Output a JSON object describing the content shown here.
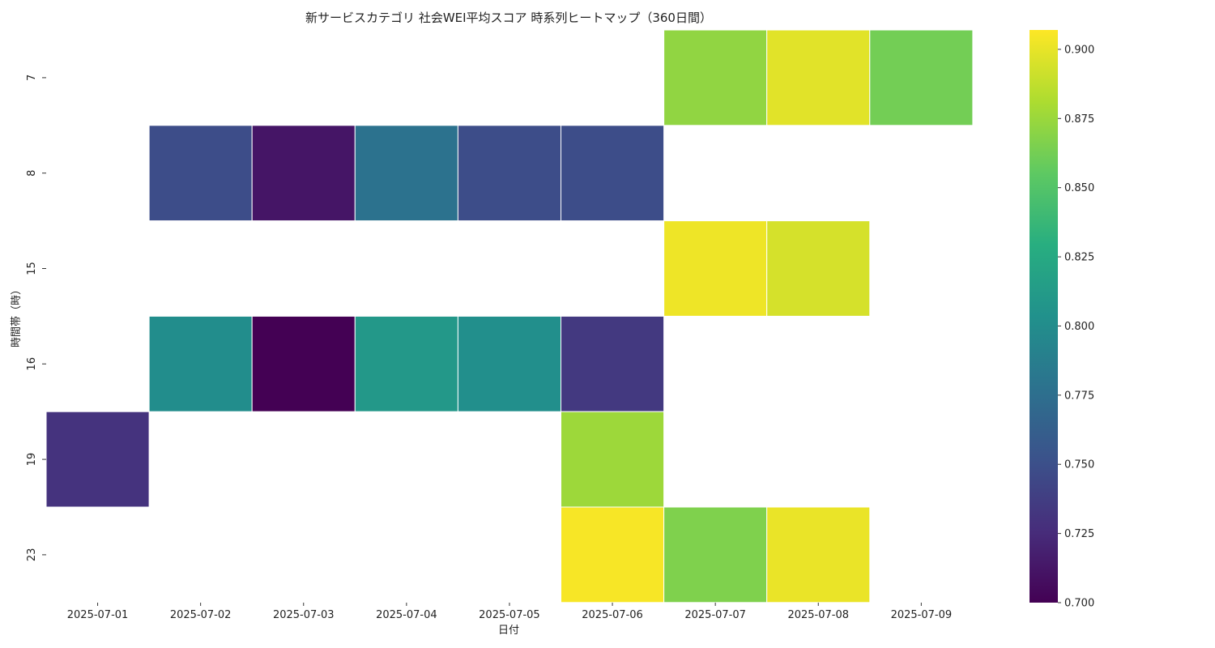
{
  "chart_data": {
    "type": "heatmap",
    "title": "新サービスカテゴリ 社会WEI平均スコア 時系列ヒートマップ（360日間）",
    "xlabel": "日付",
    "ylabel": "時間帯（時）",
    "x_categories": [
      "2025-07-01",
      "2025-07-02",
      "2025-07-03",
      "2025-07-04",
      "2025-07-05",
      "2025-07-06",
      "2025-07-07",
      "2025-07-08",
      "2025-07-09"
    ],
    "y_categories": [
      "7",
      "8",
      "15",
      "16",
      "19",
      "23"
    ],
    "values": [
      [
        null,
        null,
        null,
        null,
        null,
        null,
        0.872,
        0.898,
        0.862
      ],
      [
        null,
        0.748,
        0.712,
        0.778,
        0.748,
        0.748,
        null,
        null,
        null
      ],
      [
        null,
        null,
        null,
        null,
        null,
        null,
        0.902,
        0.894,
        null
      ],
      [
        null,
        0.8,
        0.7,
        0.81,
        0.802,
        0.734,
        null,
        null,
        null
      ],
      [
        0.73,
        null,
        null,
        null,
        null,
        0.876,
        null,
        null,
        null
      ],
      [
        null,
        null,
        null,
        null,
        null,
        0.905,
        0.866,
        0.901,
        null
      ]
    ],
    "colormap": "viridis",
    "colorbar": {
      "min": 0.7,
      "max": 0.907,
      "ticks": [
        "0.700",
        "0.725",
        "0.750",
        "0.775",
        "0.800",
        "0.825",
        "0.850",
        "0.875",
        "0.900"
      ]
    },
    "grid": false,
    "legend": "right"
  }
}
